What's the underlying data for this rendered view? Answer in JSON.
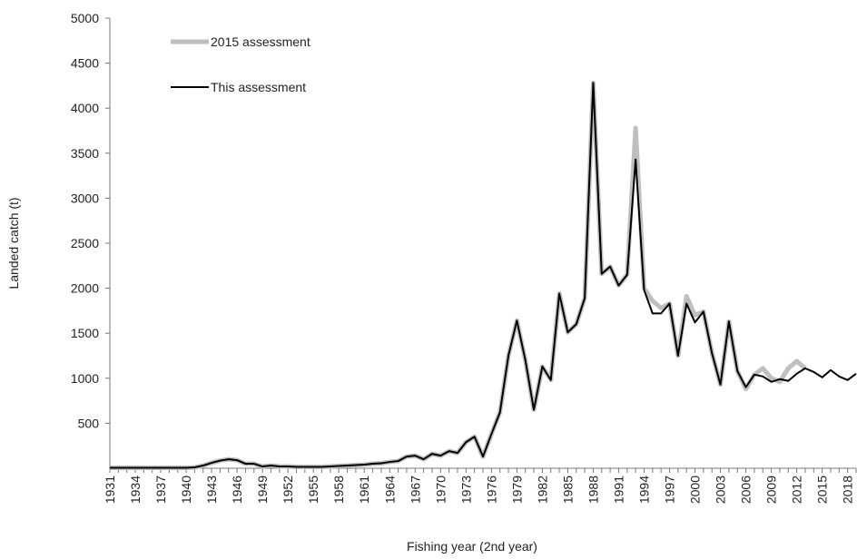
{
  "chart_data": {
    "type": "line",
    "xlabel": "Fishing year (2nd year)",
    "ylabel": "Landed catch (t)",
    "x": [
      1931,
      1932,
      1933,
      1934,
      1935,
      1936,
      1937,
      1938,
      1939,
      1940,
      1941,
      1942,
      1943,
      1944,
      1945,
      1946,
      1947,
      1948,
      1949,
      1950,
      1951,
      1952,
      1953,
      1954,
      1955,
      1956,
      1957,
      1958,
      1959,
      1960,
      1961,
      1962,
      1963,
      1964,
      1965,
      1966,
      1967,
      1968,
      1969,
      1970,
      1971,
      1972,
      1973,
      1974,
      1975,
      1976,
      1977,
      1978,
      1979,
      1980,
      1981,
      1982,
      1983,
      1984,
      1985,
      1986,
      1987,
      1988,
      1989,
      1990,
      1991,
      1992,
      1993,
      1994,
      1995,
      1996,
      1997,
      1998,
      1999,
      2000,
      2001,
      2002,
      2003,
      2004,
      2005,
      2006,
      2007,
      2008,
      2009,
      2010,
      2011,
      2012,
      2013,
      2014,
      2015,
      2016,
      2017,
      2018,
      2019
    ],
    "xlim": [
      1931,
      2019
    ],
    "xticks": [
      1931,
      1934,
      1937,
      1940,
      1943,
      1946,
      1949,
      1952,
      1955,
      1958,
      1961,
      1964,
      1967,
      1970,
      1973,
      1976,
      1979,
      1982,
      1985,
      1988,
      1991,
      1994,
      1997,
      2000,
      2003,
      2006,
      2009,
      2012,
      2015,
      2018
    ],
    "ylim": [
      0,
      5000
    ],
    "yticks": [
      500,
      1000,
      1500,
      2000,
      2500,
      3000,
      3500,
      4000,
      4500,
      5000
    ],
    "legend": "upper left",
    "series": [
      {
        "name": "2015 assessment",
        "color": "#bfbfbf",
        "width": 5,
        "values": [
          5,
          5,
          5,
          5,
          5,
          5,
          5,
          5,
          5,
          5,
          10,
          30,
          60,
          85,
          100,
          90,
          50,
          50,
          20,
          30,
          20,
          20,
          15,
          15,
          15,
          15,
          20,
          25,
          30,
          35,
          40,
          50,
          55,
          70,
          80,
          130,
          140,
          100,
          160,
          140,
          190,
          170,
          290,
          350,
          130,
          380,
          620,
          1250,
          1640,
          1200,
          650,
          1130,
          980,
          1940,
          1510,
          1600,
          1890,
          4280,
          2160,
          2240,
          2030,
          2150,
          3780,
          2000,
          1860,
          1780,
          1830,
          1250,
          1910,
          1700,
          1740,
          1280,
          930,
          1630,
          1080,
          880,
          1040,
          1110,
          1000,
          960,
          1110,
          1190,
          1110,
          null,
          null,
          null,
          null,
          null,
          null
        ]
      },
      {
        "name": "This assessment",
        "color": "#000000",
        "width": 2,
        "values": [
          5,
          5,
          5,
          5,
          5,
          5,
          5,
          5,
          5,
          5,
          10,
          30,
          60,
          85,
          100,
          90,
          50,
          50,
          20,
          30,
          20,
          20,
          15,
          15,
          15,
          15,
          20,
          25,
          30,
          35,
          40,
          50,
          55,
          70,
          80,
          130,
          140,
          100,
          160,
          140,
          190,
          170,
          290,
          350,
          130,
          380,
          620,
          1250,
          1640,
          1200,
          650,
          1130,
          980,
          1940,
          1510,
          1600,
          1890,
          4280,
          2160,
          2240,
          2030,
          2150,
          3430,
          1980,
          1720,
          1720,
          1830,
          1250,
          1830,
          1620,
          1740,
          1280,
          930,
          1630,
          1080,
          900,
          1040,
          1020,
          960,
          990,
          970,
          1050,
          1110,
          1070,
          1010,
          1090,
          1020,
          980,
          1050
        ]
      }
    ]
  }
}
